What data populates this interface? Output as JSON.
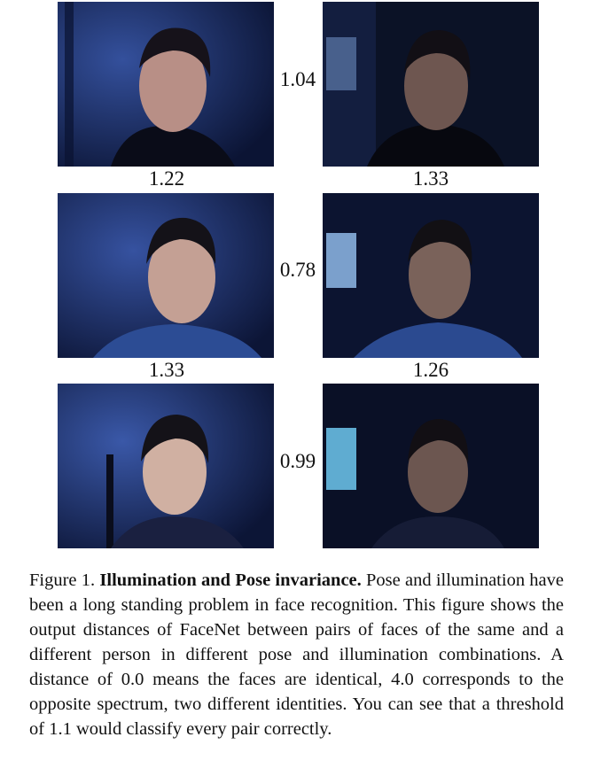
{
  "pairs": [
    {
      "cross": "1.04",
      "left_self": "1.22",
      "right_self": "1.33"
    },
    {
      "cross": "0.78",
      "left_self": "1.33",
      "right_self": "1.26"
    },
    {
      "cross": "0.99"
    }
  ],
  "caption": {
    "label": "Figure 1.",
    "title": "Illumination and Pose invariance.",
    "body": "Pose and illumination have been a long standing problem in face recognition. This figure shows the output distances of FaceNet between pairs of faces of the same and a different person in different pose and illumination combinations. A distance of 0.0 means the faces are identical, 4.0 corresponds to the opposite spectrum, two different identities. You can see that a threshold of 1.1 would classify every pair correctly."
  },
  "colors": {
    "background_dark": "#0d1838",
    "background_blue": "#2a3f88",
    "skin_lit": "#c9a89a",
    "hair": "#14121a"
  }
}
